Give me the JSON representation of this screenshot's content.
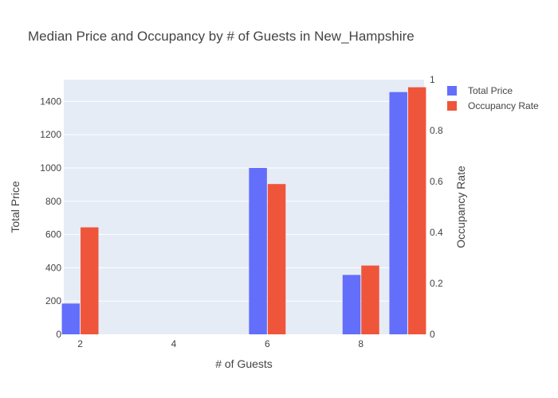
{
  "chart_data": {
    "type": "bar",
    "title": "Median Price and Occupancy by # of Guests in New_Hampshire",
    "xlabel": "# of Guests",
    "ylabel": "Total Price",
    "y2label": "Occupancy Rate",
    "x": [
      2,
      6,
      8,
      9
    ],
    "xticks": [
      2,
      4,
      6,
      8
    ],
    "xlim": [
      1.65,
      9.35
    ],
    "yticks": [
      0,
      200,
      400,
      600,
      800,
      1000,
      1200,
      1400
    ],
    "ylim": [
      0,
      1531
    ],
    "y2ticks": [
      0,
      0.2,
      0.4,
      0.6,
      0.8,
      1
    ],
    "y2ticks_text": [
      "0",
      "0.2",
      "0.4",
      "0.6",
      "0.8",
      "1"
    ],
    "y2lim": [
      0,
      1
    ],
    "grid": true,
    "legend": "top-right",
    "series": [
      {
        "name": "Total Price",
        "axis": "y",
        "color": "#636efa",
        "values": [
          185,
          1000,
          357,
          1456
        ]
      },
      {
        "name": "Occupancy Rate",
        "axis": "y2",
        "color": "#ef553b",
        "values": [
          0.42,
          0.59,
          0.27,
          0.97
        ]
      }
    ],
    "plot_bg": "#e5ecf6"
  }
}
